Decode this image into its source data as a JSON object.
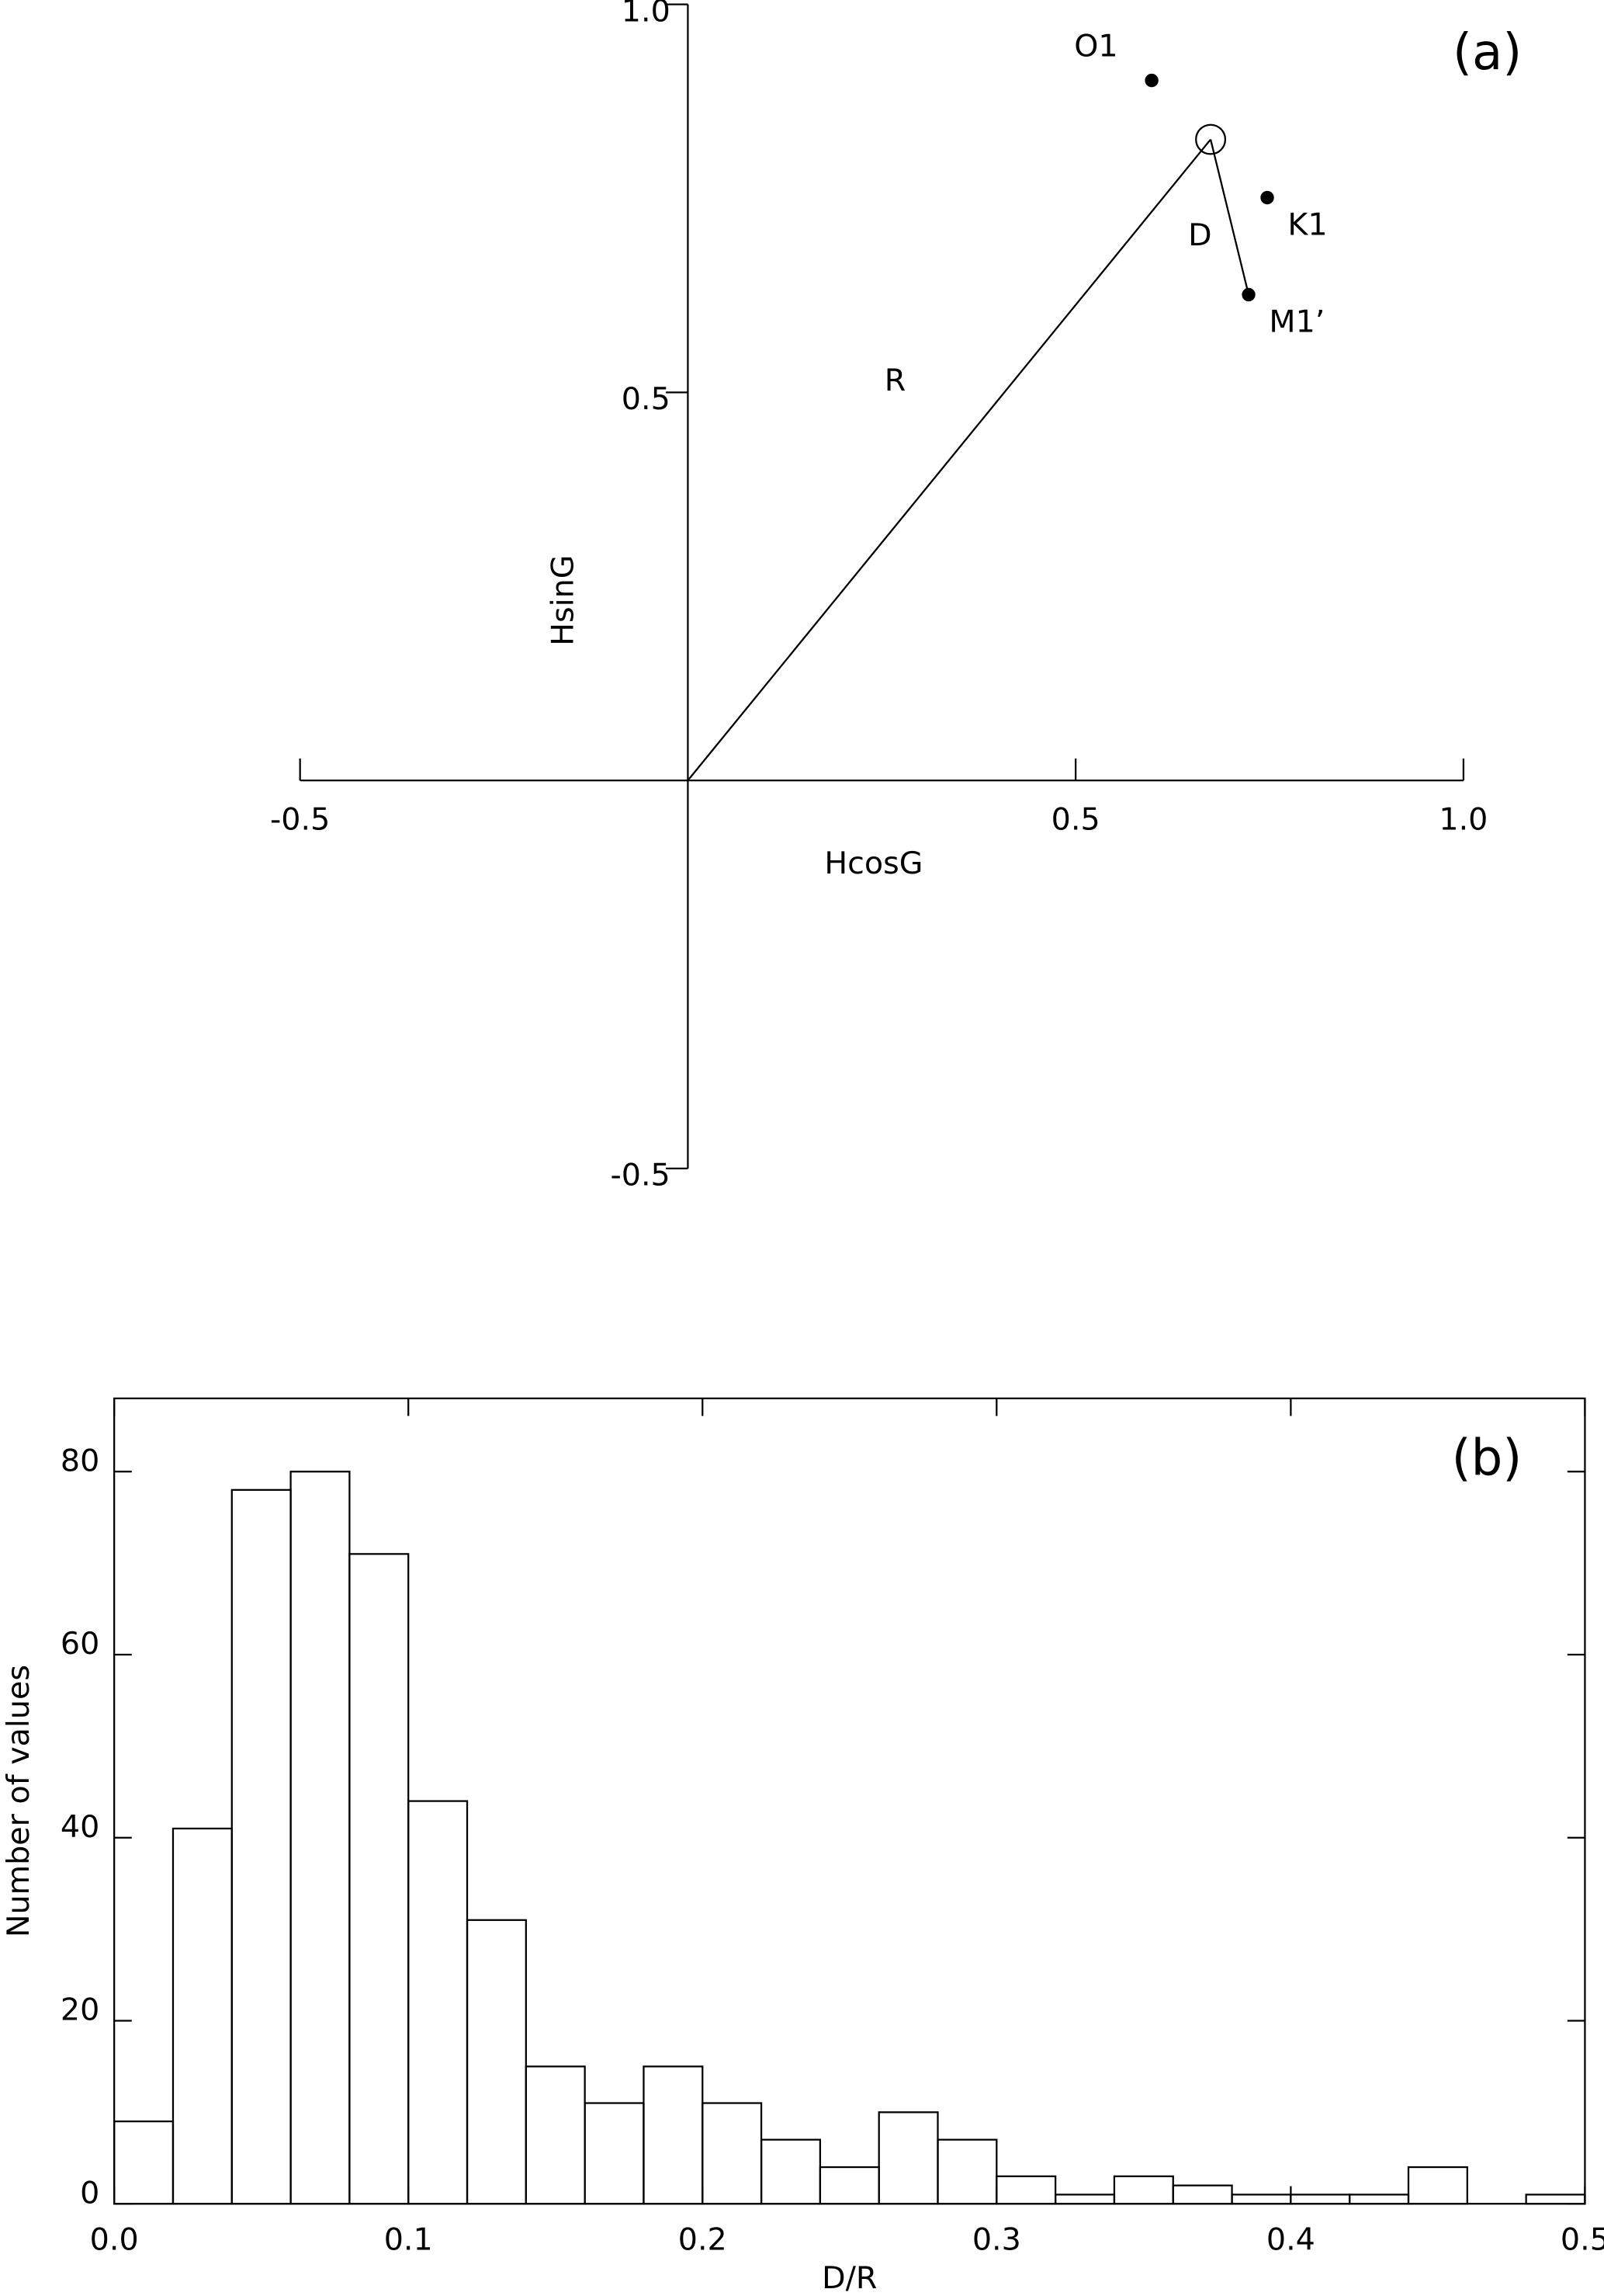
{
  "chart_data": [
    {
      "type": "scatter",
      "panel_label": "(a)",
      "x_label": "HcosG",
      "y_label": "HsinG",
      "xlim": [
        -0.5,
        1.0
      ],
      "ylim": [
        -0.5,
        1.0
      ],
      "xticks": [
        -0.5,
        0.5,
        {
          "value": 1.0,
          "label": "1.0"
        }
      ],
      "yticks": [
        -0.5,
        0.5,
        {
          "value": 1.0,
          "label": "1.0"
        }
      ],
      "points": {
        "labels": [
          "O1",
          "K1",
          "M1’"
        ],
        "x": [
          0.598,
          0.747,
          0.723
        ],
        "y": [
          0.902,
          0.751,
          0.626
        ],
        "color": "#000000"
      },
      "circle": {
        "x": 0.674,
        "y": 0.826
      },
      "r_label": "R",
      "d_label": "D"
    },
    {
      "type": "histogram",
      "panel_label": "(b)",
      "x_label": "D/R",
      "y_label": "Number of values",
      "bins": [
        0,
        0.02,
        0.04,
        0.06,
        0.08,
        0.1,
        0.12,
        0.14,
        0.16,
        0.18,
        0.2,
        0.22,
        0.24,
        0.26,
        0.28,
        0.3,
        0.32,
        0.34,
        0.36,
        0.38,
        0.4,
        0.42,
        0.44,
        0.46,
        0.48,
        0.5
      ],
      "values": [
        9,
        41,
        78,
        80,
        71,
        44,
        31,
        15,
        11,
        15,
        11,
        7,
        4,
        10,
        7,
        3,
        1,
        3,
        2,
        1,
        1,
        1,
        4,
        0,
        1
      ],
      "xlim": [
        0,
        0.5
      ],
      "ylim": [
        0,
        88
      ],
      "xticks": [
        {
          "value": 0,
          "label": "0.0"
        },
        0.1,
        0.2,
        0.3,
        0.4,
        0.5
      ],
      "yticks": [
        0,
        20,
        40,
        60,
        80
      ]
    }
  ]
}
